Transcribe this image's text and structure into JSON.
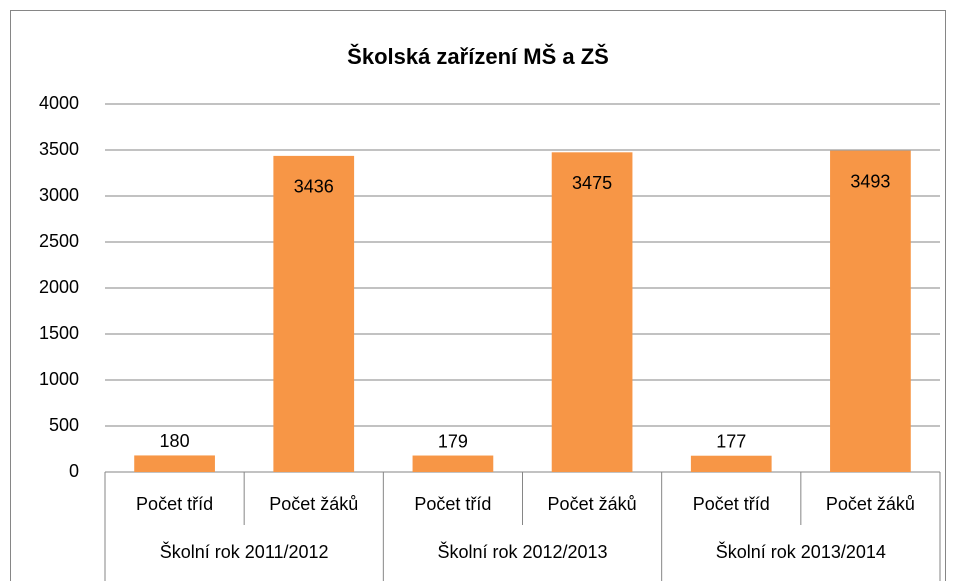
{
  "chart_data": {
    "type": "bar",
    "title": "Školská zařízení MŠ a ZŠ",
    "categories": [
      "Počet tříd",
      "Počet žáků",
      "Počet tříd",
      "Počet žáků",
      "Počet tříd",
      "Počet žáků"
    ],
    "groups": [
      "Školní rok 2011/2012",
      "Školní rok 2012/2013",
      "Školní rok 2013/2014"
    ],
    "values": [
      180,
      3436,
      179,
      3475,
      177,
      3493
    ],
    "color": "#f79646",
    "ylim": [
      0,
      4000
    ],
    "yticks": [
      0,
      500,
      1000,
      1500,
      2000,
      2500,
      3000,
      3500,
      4000
    ],
    "grid": true
  }
}
